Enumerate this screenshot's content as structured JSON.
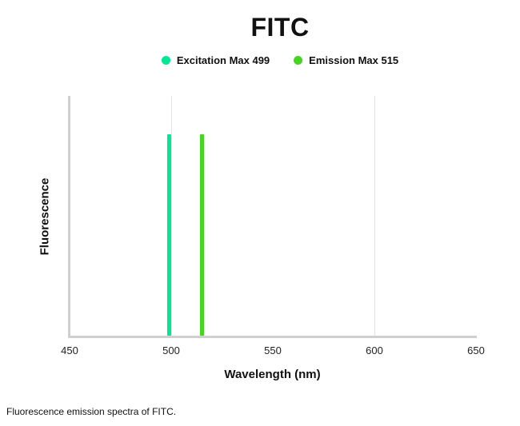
{
  "page": {
    "background": "#FFFFFF"
  },
  "chart_data": {
    "type": "line",
    "title": "FITC",
    "xlabel": "Wavelength (nm)",
    "ylabel": "Fluorescence",
    "caption": "Fluorescence emission spectra of FITC.",
    "xlim": [
      450,
      650
    ],
    "x_ticks": [
      450,
      500,
      550,
      600,
      650
    ],
    "gridline_x": [
      500,
      600
    ],
    "grid": "faint vertical gridlines",
    "legend_position": "top center",
    "axis_color": "#CFCFCF",
    "gridline_color": "#E4E4E4",
    "series": [
      {
        "name": "Excitation Max 499",
        "type": "vertical-spike",
        "x": 499,
        "relative_intensity": 0.84,
        "color": "#00E896"
      },
      {
        "name": "Emission Max 515",
        "type": "vertical-spike",
        "x": 515,
        "relative_intensity": 0.84,
        "color": "#46D622"
      }
    ]
  }
}
